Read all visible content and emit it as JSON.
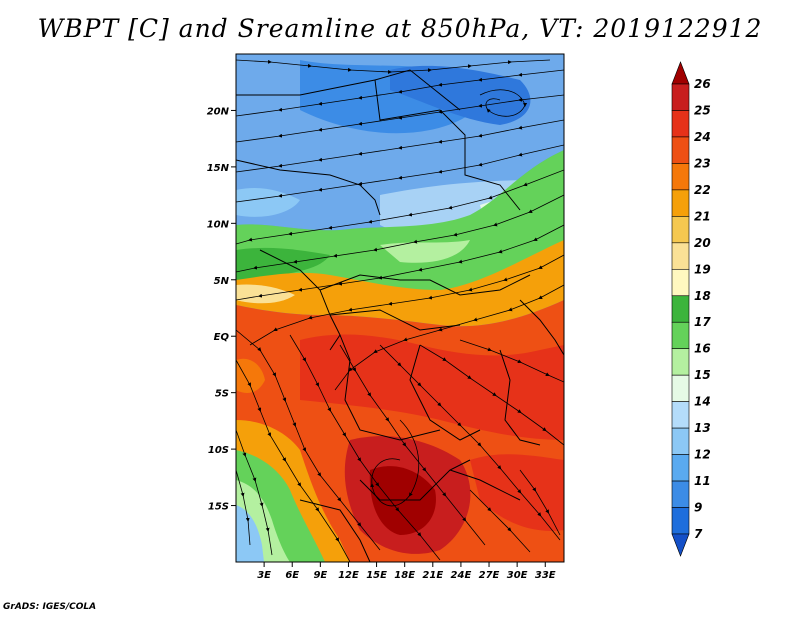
{
  "title": "WBPT [C] and Sreamline at 850hPa, VT: 2019122912",
  "credit": "GrADS: IGES/COLA",
  "map": {
    "lon_range": [
      0,
      35
    ],
    "lat_range": [
      -20,
      25
    ],
    "x_ticks": [
      "3E",
      "6E",
      "9E",
      "12E",
      "15E",
      "18E",
      "21E",
      "24E",
      "27E",
      "30E",
      "33E"
    ],
    "y_ticks": [
      "20N",
      "15N",
      "10N",
      "5N",
      "EQ",
      "5S",
      "10S",
      "15S"
    ]
  },
  "colorbar": {
    "labels": [
      "26",
      "25",
      "24",
      "23",
      "22",
      "21",
      "20",
      "19",
      "18",
      "17",
      "16",
      "15",
      "14",
      "13",
      "12",
      "11",
      "9",
      "7"
    ],
    "colors": [
      "#a00000",
      "#c81e1e",
      "#e63219",
      "#ee5014",
      "#f5780a",
      "#f5a00a",
      "#f5c850",
      "#fae196",
      "#fff8c0",
      "#3cb43c",
      "#64d25a",
      "#b4f0a0",
      "#e6fae6",
      "#b4dcfa",
      "#8cc8f5",
      "#5aaaf0",
      "#3c8ce6",
      "#1e6edc",
      "#1450c8"
    ]
  }
}
